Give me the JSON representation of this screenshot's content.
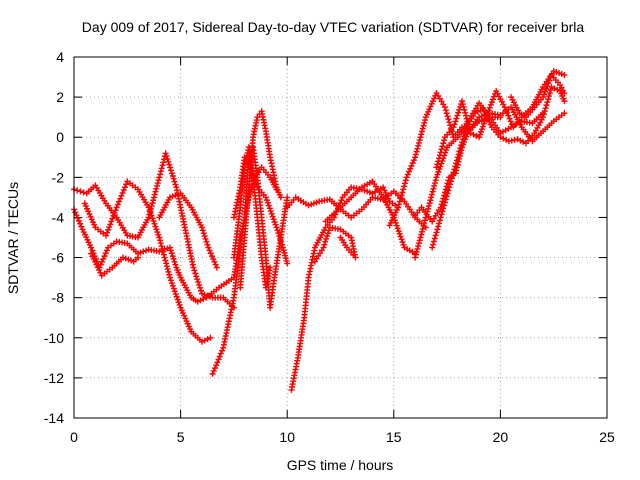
{
  "chart_data": {
    "type": "scatter",
    "title": "Day 009 of 2017, Sidereal Day-to-day VTEC variation (SDTVAR) for receiver brla",
    "xlabel": "GPS time / hours",
    "ylabel": "SDTVAR / TECUs",
    "xlim": [
      0,
      25
    ],
    "ylim": [
      -14,
      4
    ],
    "xticks": [
      "0",
      "5",
      "10",
      "15",
      "20",
      "25"
    ],
    "yticks": [
      "-14",
      "-12",
      "-10",
      "-8",
      "-6",
      "-4",
      "-2",
      "0",
      "2",
      "4"
    ],
    "grid": true,
    "marker": "+",
    "color": "#ff0000",
    "series": [
      {
        "values": [
          [
            0.0,
            -2.6
          ],
          [
            0.6,
            -2.8
          ],
          [
            1.0,
            -2.4
          ],
          [
            1.5,
            -3.3
          ],
          [
            2.0,
            -4.0
          ],
          [
            2.5,
            -4.9
          ],
          [
            3.0,
            -5.0
          ],
          [
            3.5,
            -4.0
          ],
          [
            4.0,
            -2.0
          ],
          [
            4.3,
            -0.8
          ],
          [
            4.8,
            -2.5
          ],
          [
            5.2,
            -4.5
          ],
          [
            5.6,
            -6.5
          ],
          [
            6.0,
            -7.8
          ],
          [
            6.5,
            -8.0
          ],
          [
            7.0,
            -8.0
          ],
          [
            7.5,
            -8.5
          ]
        ]
      },
      {
        "values": [
          [
            0.0,
            -3.6
          ],
          [
            0.4,
            -4.6
          ],
          [
            0.8,
            -5.5
          ],
          [
            1.2,
            -6.5
          ],
          [
            1.6,
            -5.5
          ],
          [
            2.0,
            -5.2
          ],
          [
            2.5,
            -5.3
          ],
          [
            3.0,
            -5.8
          ],
          [
            3.5,
            -5.6
          ],
          [
            4.0,
            -5.7
          ],
          [
            4.5,
            -5.5
          ],
          [
            4.8,
            -6.5
          ],
          [
            5.0,
            -7.0
          ],
          [
            5.5,
            -8.0
          ],
          [
            5.8,
            -8.2
          ],
          [
            6.2,
            -8.0
          ],
          [
            6.8,
            -7.5
          ],
          [
            7.5,
            -7.0
          ],
          [
            7.8,
            -5.0
          ],
          [
            8.2,
            -3.0
          ],
          [
            8.5,
            -2.0
          ],
          [
            8.8,
            -1.5
          ],
          [
            9.2,
            -2.0
          ],
          [
            9.5,
            -2.6
          ]
        ]
      },
      {
        "values": [
          [
            0.5,
            -3.3
          ],
          [
            1.0,
            -4.5
          ],
          [
            1.5,
            -4.9
          ],
          [
            2.0,
            -3.5
          ],
          [
            2.5,
            -2.2
          ],
          [
            3.0,
            -2.6
          ],
          [
            3.5,
            -3.5
          ],
          [
            4.0,
            -5.0
          ],
          [
            4.5,
            -7.0
          ],
          [
            5.0,
            -8.5
          ],
          [
            5.5,
            -9.7
          ],
          [
            6.0,
            -10.2
          ],
          [
            6.4,
            -10.0
          ]
        ]
      },
      {
        "values": [
          [
            0.8,
            -5.8
          ],
          [
            1.3,
            -6.9
          ],
          [
            1.8,
            -6.5
          ],
          [
            2.3,
            -6.0
          ],
          [
            2.8,
            -6.2
          ],
          [
            3.0,
            -6.0
          ]
        ]
      },
      {
        "values": [
          [
            4.0,
            -4.0
          ],
          [
            4.5,
            -3.0
          ],
          [
            5.0,
            -2.8
          ],
          [
            5.5,
            -3.5
          ],
          [
            6.0,
            -4.5
          ],
          [
            6.3,
            -5.5
          ],
          [
            6.7,
            -6.5
          ]
        ]
      },
      {
        "values": [
          [
            6.5,
            -11.8
          ],
          [
            7.0,
            -10.5
          ],
          [
            7.5,
            -8.0
          ],
          [
            8.0,
            -4.0
          ],
          [
            8.2,
            -1.0
          ],
          [
            8.4,
            -0.5
          ],
          [
            8.6,
            -2.0
          ],
          [
            8.8,
            -4.0
          ],
          [
            9.0,
            -6.0
          ],
          [
            9.2,
            -8.5
          ],
          [
            9.4,
            -7.0
          ],
          [
            9.7,
            -5.0
          ],
          [
            10.0,
            -3.0
          ]
        ]
      },
      {
        "values": [
          [
            7.8,
            -7.5
          ],
          [
            8.0,
            -5.0
          ],
          [
            8.2,
            -2.5
          ],
          [
            8.4,
            0.0
          ],
          [
            8.6,
            1.0
          ],
          [
            8.8,
            1.3
          ],
          [
            9.0,
            0.3
          ],
          [
            9.2,
            -1.0
          ],
          [
            9.5,
            -2.5
          ],
          [
            9.7,
            -3.0
          ]
        ]
      },
      {
        "values": [
          [
            7.5,
            -6.0
          ],
          [
            7.8,
            -3.5
          ],
          [
            8.0,
            -1.5
          ],
          [
            8.2,
            -0.5
          ],
          [
            8.4,
            -2.0
          ],
          [
            8.6,
            -4.0
          ],
          [
            8.8,
            -6.0
          ],
          [
            9.0,
            -7.5
          ],
          [
            9.2,
            -6.5
          ]
        ]
      },
      {
        "values": [
          [
            7.5,
            -4.0
          ],
          [
            7.8,
            -2.5
          ],
          [
            8.0,
            -1.0
          ],
          [
            8.3,
            -1.5
          ],
          [
            8.6,
            -2.5
          ],
          [
            9.0,
            -3.0
          ],
          [
            9.5,
            -4.5
          ],
          [
            9.8,
            -5.5
          ],
          [
            10.0,
            -6.3
          ]
        ]
      },
      {
        "values": [
          [
            10.2,
            -12.6
          ],
          [
            10.5,
            -11.0
          ],
          [
            10.8,
            -9.0
          ],
          [
            11.0,
            -7.0
          ],
          [
            11.3,
            -5.5
          ],
          [
            11.8,
            -4.5
          ],
          [
            12.2,
            -4.0
          ],
          [
            12.6,
            -3.0
          ],
          [
            13.0,
            -2.5
          ],
          [
            13.5,
            -2.6
          ],
          [
            14.0,
            -2.8
          ],
          [
            14.5,
            -2.5
          ],
          [
            14.8,
            -3.2
          ],
          [
            15.2,
            -3.5
          ]
        ]
      },
      {
        "values": [
          [
            10.0,
            -3.5
          ],
          [
            10.4,
            -3.0
          ],
          [
            11.0,
            -3.4
          ],
          [
            11.5,
            -3.2
          ],
          [
            12.0,
            -3.1
          ],
          [
            12.5,
            -3.6
          ],
          [
            13.0,
            -4.0
          ],
          [
            13.5,
            -3.6
          ],
          [
            14.0,
            -3.0
          ],
          [
            14.5,
            -3.1
          ],
          [
            15.0,
            -2.7
          ],
          [
            15.5,
            -3.2
          ],
          [
            16.0,
            -4.0
          ],
          [
            16.5,
            -4.5
          ]
        ]
      },
      {
        "values": [
          [
            11.3,
            -6.2
          ],
          [
            11.7,
            -5.5
          ],
          [
            12.0,
            -4.5
          ],
          [
            12.5,
            -4.6
          ],
          [
            13.0,
            -5.0
          ],
          [
            13.2,
            -6.0
          ],
          [
            12.8,
            -5.5
          ],
          [
            12.5,
            -5.0
          ]
        ]
      },
      {
        "values": [
          [
            11.8,
            -4.2
          ],
          [
            12.5,
            -3.5
          ],
          [
            13.0,
            -3.0
          ],
          [
            13.5,
            -2.5
          ],
          [
            14.0,
            -2.2
          ],
          [
            14.5,
            -3.0
          ],
          [
            15.0,
            -4.0
          ],
          [
            15.5,
            -5.5
          ],
          [
            16.0,
            -5.8
          ]
        ]
      },
      {
        "values": [
          [
            14.8,
            -4.4
          ],
          [
            15.2,
            -3.5
          ],
          [
            15.6,
            -2.0
          ],
          [
            16.0,
            -1.0
          ],
          [
            16.5,
            1.0
          ],
          [
            17.0,
            2.2
          ],
          [
            17.4,
            1.5
          ],
          [
            17.8,
            0.0
          ],
          [
            18.2,
            0.5
          ],
          [
            18.6,
            0.4
          ],
          [
            19.0,
            0.8
          ],
          [
            19.5,
            1.0
          ],
          [
            20.0,
            1.0
          ]
        ]
      },
      {
        "values": [
          [
            16.0,
            -6.0
          ],
          [
            16.5,
            -4.0
          ],
          [
            17.0,
            -2.0
          ],
          [
            17.5,
            -0.5
          ],
          [
            18.0,
            0.0
          ],
          [
            18.5,
            0.8
          ],
          [
            19.0,
            1.7
          ],
          [
            19.5,
            1.0
          ],
          [
            20.0,
            0.2
          ],
          [
            20.5,
            0.5
          ],
          [
            21.0,
            0.8
          ],
          [
            21.5,
            0.7
          ],
          [
            22.0,
            1.2
          ]
        ]
      },
      {
        "values": [
          [
            16.0,
            -3.9
          ],
          [
            16.3,
            -3.5
          ],
          [
            16.8,
            -4.2
          ],
          [
            17.2,
            -3.5
          ],
          [
            17.6,
            -2.0
          ],
          [
            17.9,
            -1.8
          ],
          [
            18.2,
            -0.5
          ],
          [
            18.5,
            0.3
          ],
          [
            19.0,
            1.0
          ],
          [
            19.5,
            1.2
          ],
          [
            20.0,
            1.1
          ],
          [
            20.5,
            1.5
          ],
          [
            21.0,
            0.5
          ],
          [
            21.5,
            -0.2
          ],
          [
            22.0,
            0.3
          ],
          [
            22.5,
            0.8
          ],
          [
            23.0,
            1.2
          ]
        ]
      },
      {
        "values": [
          [
            17.0,
            -1.5
          ],
          [
            17.4,
            0.0
          ],
          [
            17.8,
            0.5
          ],
          [
            18.2,
            1.8
          ],
          [
            18.6,
            0.2
          ],
          [
            19.0,
            0.0
          ],
          [
            19.4,
            1.2
          ],
          [
            19.8,
            2.3
          ],
          [
            20.2,
            1.5
          ],
          [
            20.6,
            0.5
          ],
          [
            21.0,
            1.0
          ],
          [
            21.5,
            1.5
          ],
          [
            22.0,
            2.5
          ],
          [
            22.5,
            3.3
          ],
          [
            23.0,
            3.1
          ]
        ]
      },
      {
        "values": [
          [
            16.8,
            -5.5
          ],
          [
            17.2,
            -4.0
          ],
          [
            17.6,
            -2.5
          ],
          [
            18.0,
            -1.0
          ],
          [
            18.4,
            0.5
          ],
          [
            18.8,
            1.2
          ],
          [
            19.2,
            1.4
          ],
          [
            19.6,
            0.5
          ],
          [
            20.0,
            0.0
          ],
          [
            20.4,
            -0.2
          ],
          [
            20.8,
            -0.1
          ],
          [
            21.2,
            -0.3
          ],
          [
            21.6,
            0.2
          ],
          [
            22.0,
            1.0
          ],
          [
            22.4,
            2.5
          ],
          [
            22.8,
            2.3
          ],
          [
            23.0,
            1.8
          ]
        ]
      },
      {
        "values": [
          [
            20.5,
            2.0
          ],
          [
            20.9,
            1.2
          ],
          [
            21.2,
            1.0
          ],
          [
            21.6,
            1.5
          ],
          [
            22.0,
            2.0
          ],
          [
            22.4,
            3.1
          ],
          [
            22.8,
            2.6
          ],
          [
            23.0,
            2.2
          ]
        ]
      }
    ]
  }
}
